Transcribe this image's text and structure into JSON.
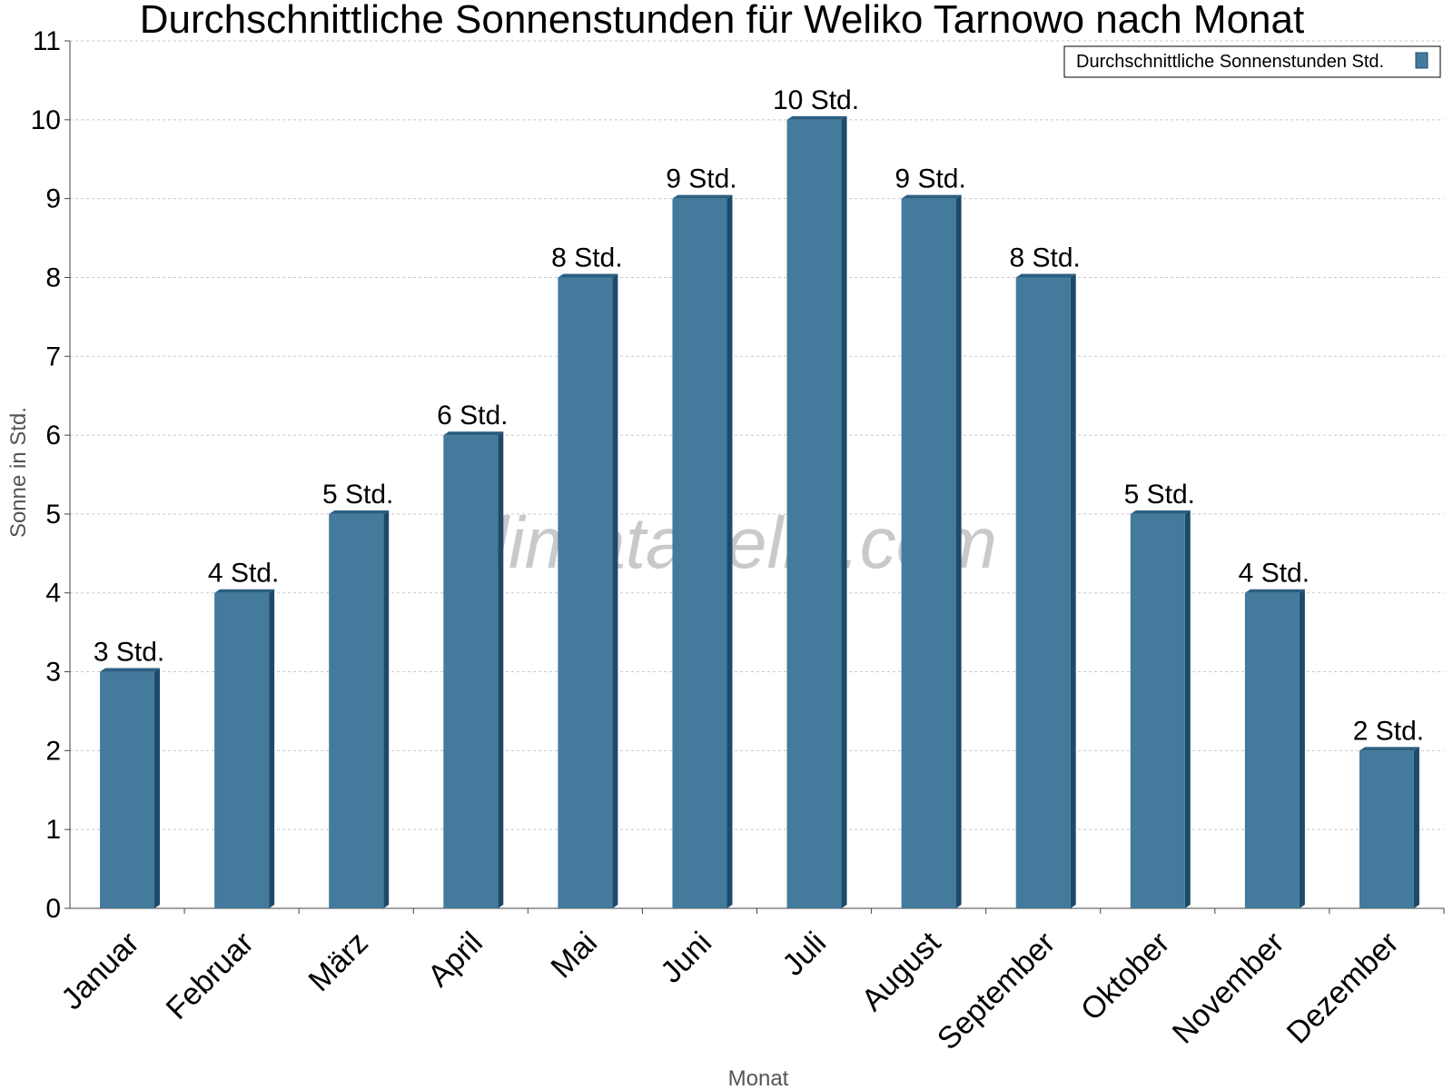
{
  "watermark": "klimatabelle.com",
  "colors": {
    "bar_front": "#447a9c",
    "bar_side": "#1d4a6a",
    "bar_top": "#2d5f82"
  },
  "chart_data": {
    "type": "bar",
    "title": "Durchschnittliche Sonnenstunden für Weliko Tarnowo nach Monat",
    "xlabel": "Monat",
    "ylabel": "Sonne in Std.",
    "ylim": [
      0,
      11
    ],
    "yticks": [
      "0",
      "1",
      "2",
      "3",
      "4",
      "5",
      "6",
      "7",
      "8",
      "9",
      "10",
      "11"
    ],
    "grid": true,
    "legend_position": "top-right",
    "categories": [
      "Januar",
      "Februar",
      "März",
      "April",
      "Mai",
      "Juni",
      "Juli",
      "August",
      "September",
      "Oktober",
      "November",
      "Dezember"
    ],
    "series": [
      {
        "name": "Durchschnittliche Sonnenstunden Std.",
        "values": [
          3,
          4,
          5,
          6,
          8,
          9,
          10,
          9,
          8,
          5,
          4,
          2
        ],
        "labels": [
          "3 Std.",
          "4 Std.",
          "5 Std.",
          "6 Std.",
          "8 Std.",
          "9 Std.",
          "10 Std.",
          "9 Std.",
          "8 Std.",
          "5 Std.",
          "4 Std.",
          "2 Std."
        ]
      }
    ]
  }
}
